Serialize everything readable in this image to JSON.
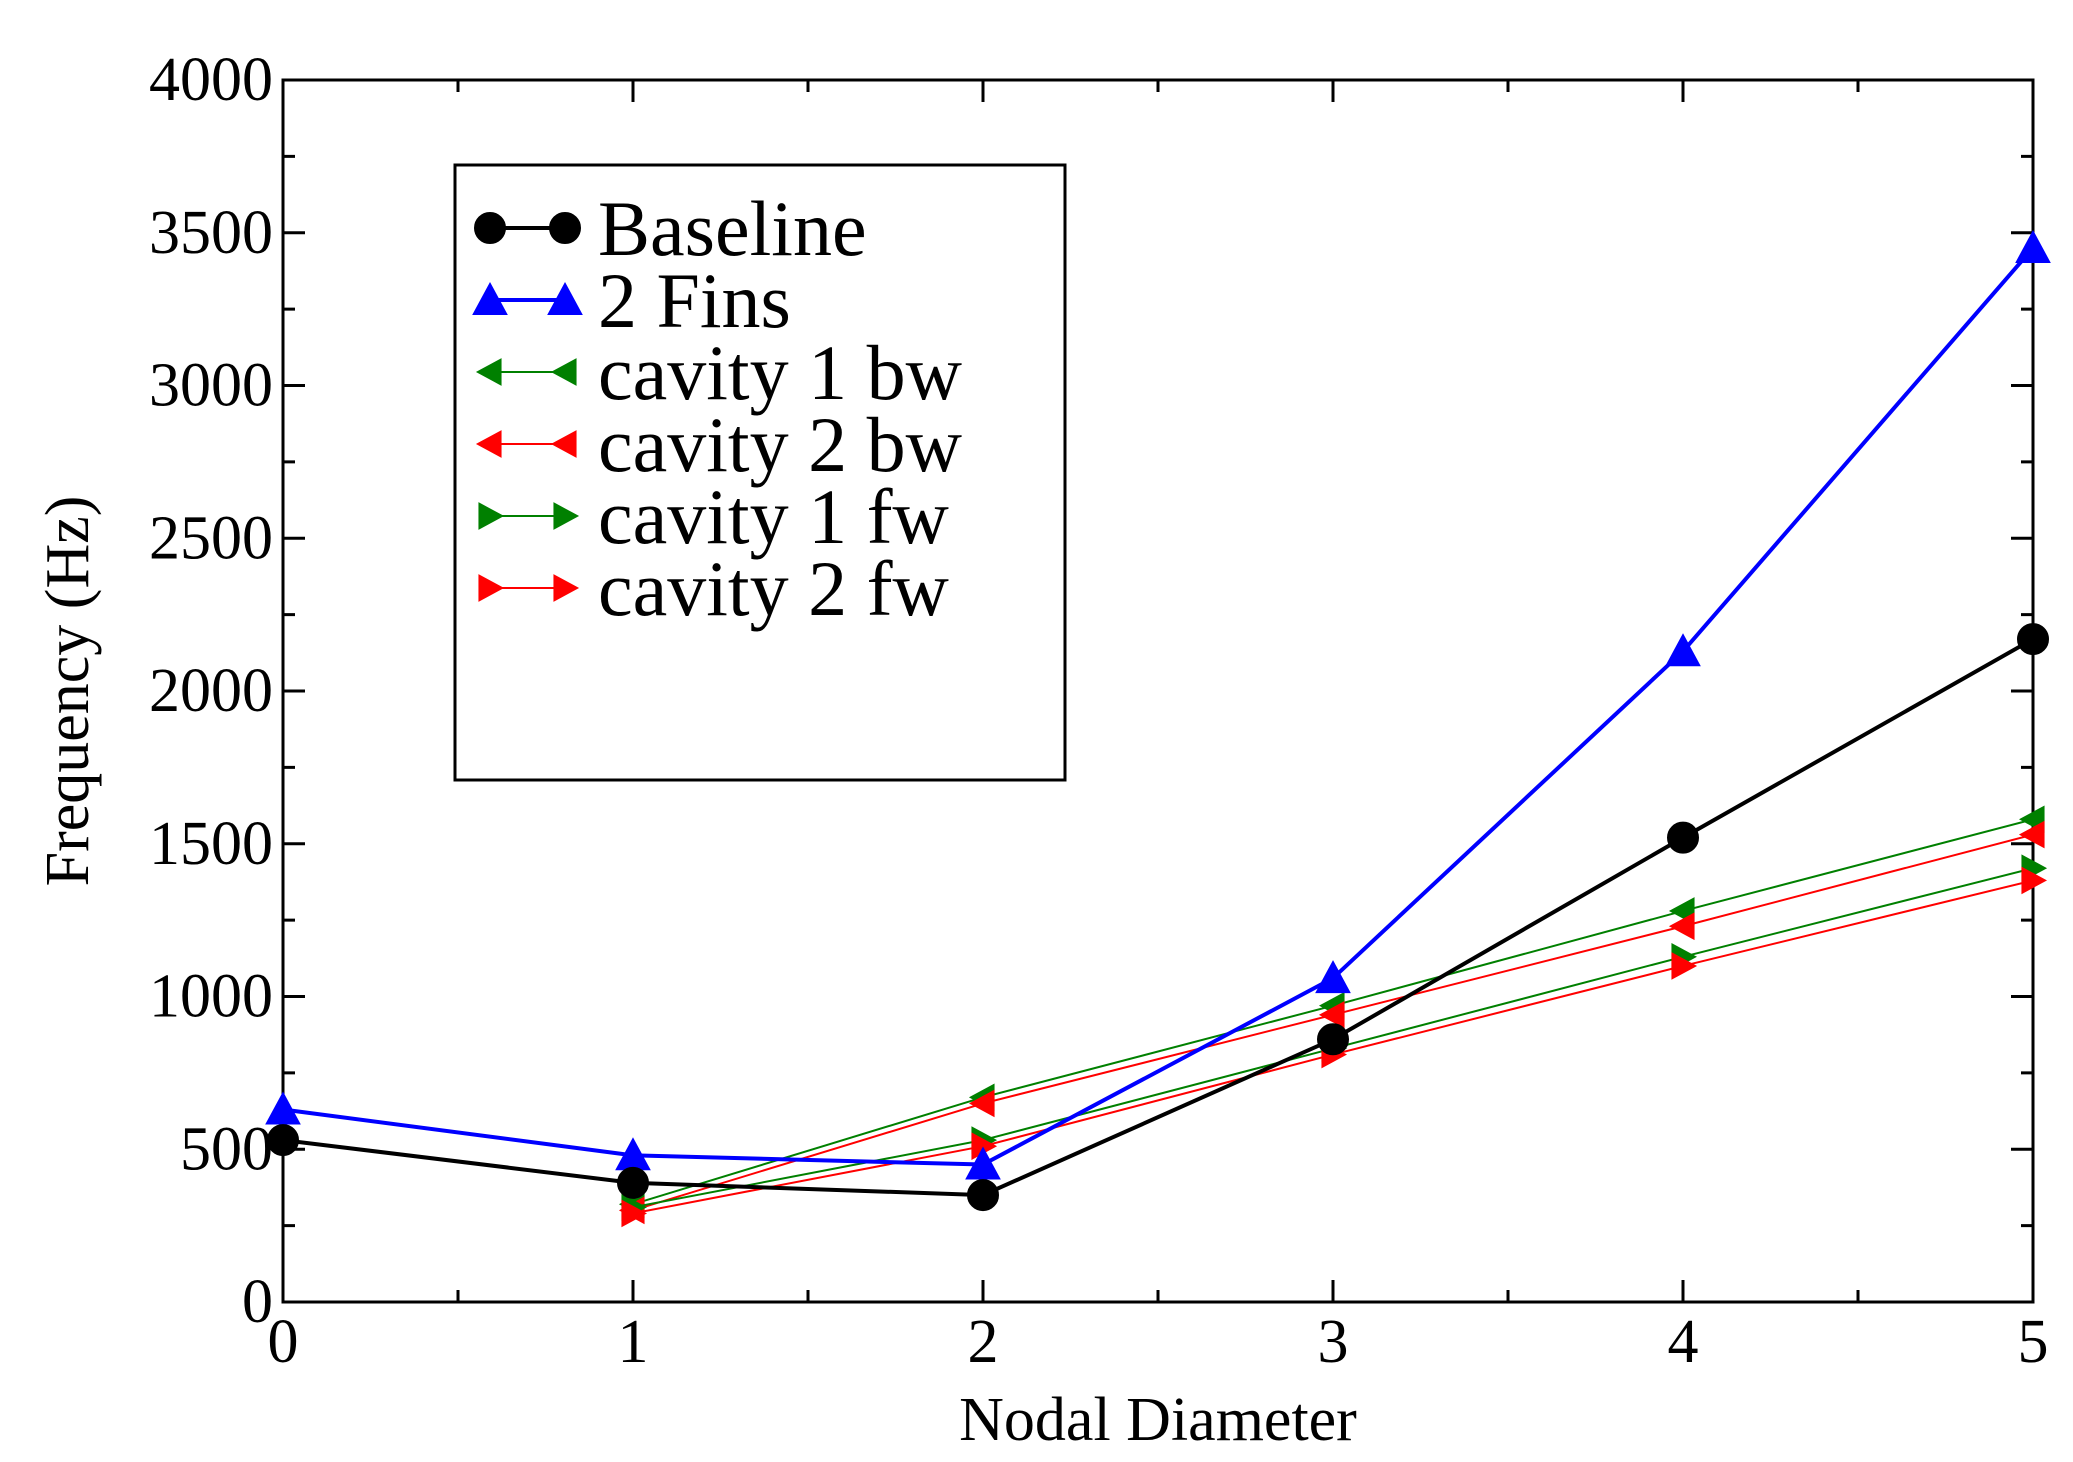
{
  "chart_data": {
    "type": "line",
    "title": "",
    "xlabel": "Nodal Diameter",
    "ylabel": "Frequency (Hz)",
    "xlim": [
      0,
      5
    ],
    "ylim": [
      0,
      4000
    ],
    "x_ticks": [
      0,
      1,
      2,
      3,
      4,
      5
    ],
    "x_tick_labels": [
      "0",
      "1",
      "2",
      "3",
      "4",
      "5"
    ],
    "y_ticks": [
      0,
      500,
      1000,
      1500,
      2000,
      2500,
      3000,
      3500,
      4000
    ],
    "y_tick_labels": [
      "0",
      "500",
      "1000",
      "1500",
      "2000",
      "2500",
      "3000",
      "3500",
      "4000"
    ],
    "grid": false,
    "legend_position": "upper-left",
    "series": [
      {
        "name": "Baseline",
        "color": "#000000",
        "marker": "circle",
        "x": [
          0,
          1,
          2,
          3,
          4,
          5
        ],
        "values": [
          530,
          390,
          350,
          860,
          1520,
          2170
        ]
      },
      {
        "name": "2 Fins",
        "color": "#0000ff",
        "marker": "triangle-up",
        "x": [
          0,
          1,
          2,
          3,
          4,
          5
        ],
        "values": [
          630,
          480,
          450,
          1060,
          2130,
          3450
        ]
      },
      {
        "name": "cavity 1 bw",
        "color": "#008000",
        "marker": "triangle-left",
        "x": [
          1,
          2,
          3,
          4,
          5
        ],
        "values": [
          320,
          670,
          970,
          1280,
          1580
        ]
      },
      {
        "name": "cavity 2 bw",
        "color": "#ff0000",
        "marker": "triangle-left",
        "x": [
          1,
          2,
          3,
          4,
          5
        ],
        "values": [
          300,
          650,
          940,
          1230,
          1530
        ]
      },
      {
        "name": "cavity 1 fw",
        "color": "#008000",
        "marker": "triangle-right",
        "x": [
          1,
          2,
          3,
          4,
          5
        ],
        "values": [
          310,
          530,
          830,
          1130,
          1420
        ]
      },
      {
        "name": "cavity 2 fw",
        "color": "#ff0000",
        "marker": "triangle-right",
        "x": [
          1,
          2,
          3,
          4,
          5
        ],
        "values": [
          290,
          510,
          810,
          1100,
          1380
        ]
      }
    ]
  }
}
